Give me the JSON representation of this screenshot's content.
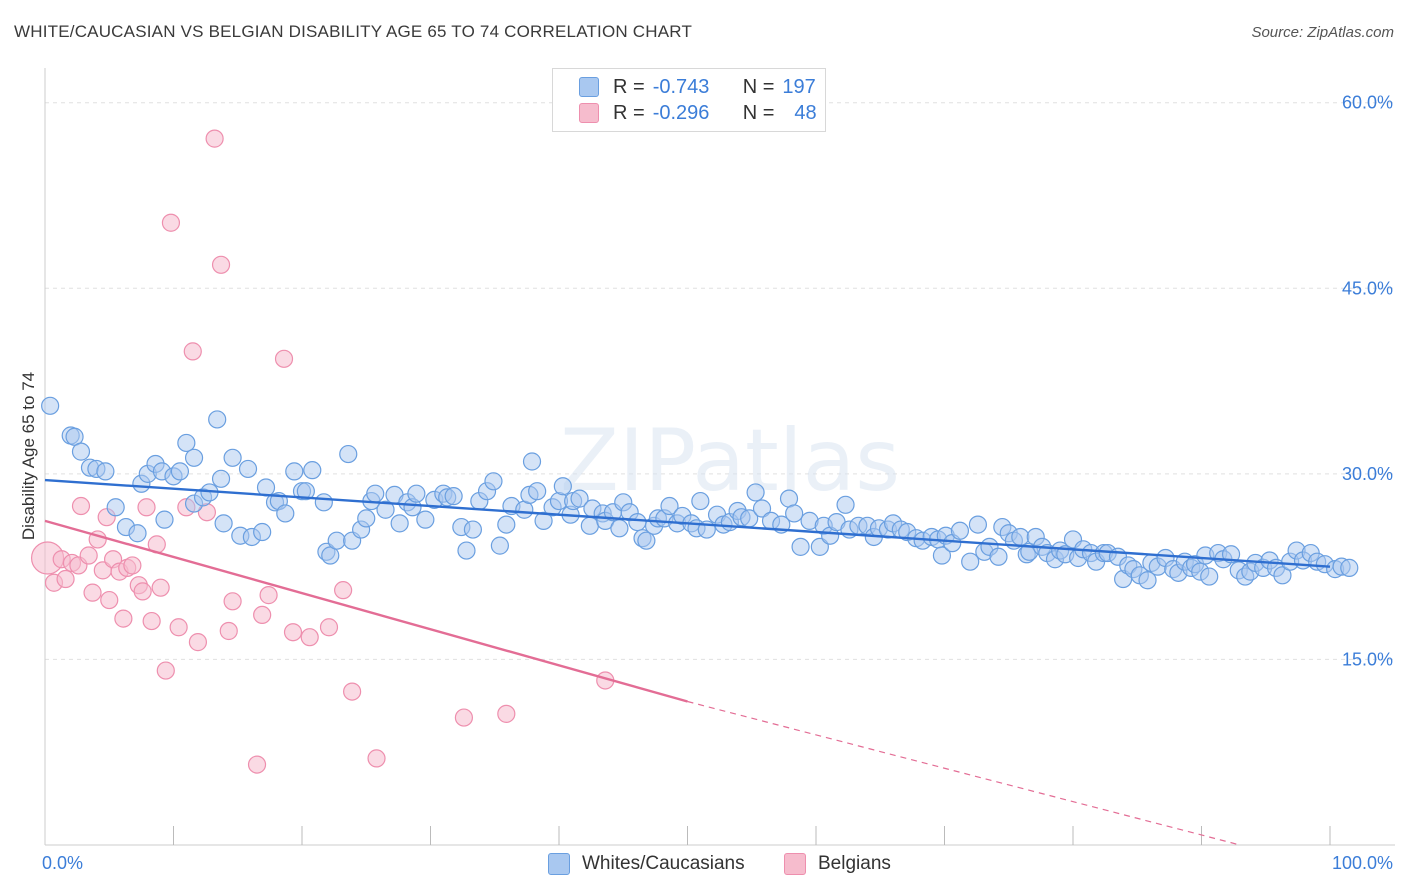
{
  "title": "WHITE/CAUCASIAN VS BELGIAN DISABILITY AGE 65 TO 74 CORRELATION CHART",
  "source": "Source: ZipAtlas.com",
  "watermark": "ZIPatlas",
  "legend": {
    "rows": [
      {
        "r_label": "R =",
        "r_value": "-0.743",
        "n_label": "N =",
        "n_value": "197"
      },
      {
        "r_label": "R =",
        "r_value": "-0.296",
        "n_label": "N =",
        "n_value": "48"
      }
    ]
  },
  "bottom_legend": [
    "Whites/Caucasians",
    "Belgians"
  ],
  "colors": {
    "blue_fill": "#a9c8f0",
    "blue_stroke": "#6a9fe0",
    "blue_line": "#2f6fd0",
    "pink_fill": "#f6bccd",
    "pink_stroke": "#ee8fae",
    "pink_line": "#e36d95",
    "tick_text": "#3b7dd8",
    "grid": "#e0e0e0"
  },
  "chart_data": {
    "type": "scatter",
    "title": "WHITE/CAUCASIAN VS BELGIAN DISABILITY AGE 65 TO 74 CORRELATION CHART",
    "xlabel": "",
    "ylabel": "Disability Age 65 to 74",
    "xlim": [
      0,
      100
    ],
    "ylim": [
      0,
      60
    ],
    "x_tick_labels": [
      "0.0%",
      "100.0%"
    ],
    "y_ticks": [
      15,
      30,
      45,
      60
    ],
    "y_tick_labels": [
      "15.0%",
      "30.0%",
      "45.0%",
      "60.0%"
    ],
    "grid": true,
    "legend_position": "top-center",
    "series": [
      {
        "name": "Whites/Caucasians",
        "r": -0.743,
        "n": 197,
        "trend": {
          "x0": 0,
          "y0": 29.5,
          "x1": 100,
          "y1": 22.5
        },
        "points": [
          [
            0.4,
            35.5
          ],
          [
            2,
            33.1
          ],
          [
            2.3,
            33
          ],
          [
            2.8,
            31.8
          ],
          [
            3.5,
            30.5
          ],
          [
            4,
            30.4
          ],
          [
            4.7,
            30.2
          ],
          [
            5.5,
            27.3
          ],
          [
            6.3,
            25.7
          ],
          [
            7.2,
            25.2
          ],
          [
            7.5,
            29.2
          ],
          [
            8,
            30
          ],
          [
            8.6,
            30.8
          ],
          [
            9.1,
            30.2
          ],
          [
            9.3,
            26.3
          ],
          [
            10,
            29.8
          ],
          [
            10.5,
            30.2
          ],
          [
            11,
            32.5
          ],
          [
            11.6,
            27.6
          ],
          [
            11.6,
            31.3
          ],
          [
            12.3,
            28.1
          ],
          [
            12.8,
            28.5
          ],
          [
            13.4,
            34.4
          ],
          [
            13.7,
            29.6
          ],
          [
            13.9,
            26
          ],
          [
            14.6,
            31.3
          ],
          [
            15.2,
            25
          ],
          [
            15.8,
            30.4
          ],
          [
            16.1,
            24.9
          ],
          [
            16.9,
            25.3
          ],
          [
            17.2,
            28.9
          ],
          [
            17.9,
            27.7
          ],
          [
            18.2,
            27.8
          ],
          [
            18.7,
            26.8
          ],
          [
            19.4,
            30.2
          ],
          [
            20,
            28.6
          ],
          [
            20.3,
            28.6
          ],
          [
            20.8,
            30.3
          ],
          [
            21.7,
            27.7
          ],
          [
            21.9,
            23.7
          ],
          [
            22.2,
            23.4
          ],
          [
            22.7,
            24.6
          ],
          [
            23.6,
            31.6
          ],
          [
            23.9,
            24.6
          ],
          [
            24.6,
            25.5
          ],
          [
            25,
            26.4
          ],
          [
            25.4,
            27.8
          ],
          [
            25.7,
            28.4
          ],
          [
            26.5,
            27.1
          ],
          [
            27.2,
            28.3
          ],
          [
            27.6,
            26
          ],
          [
            28.2,
            27.7
          ],
          [
            28.6,
            27.3
          ],
          [
            28.9,
            28.4
          ],
          [
            29.6,
            26.3
          ],
          [
            30.3,
            27.9
          ],
          [
            31,
            28.4
          ],
          [
            31.3,
            28.1
          ],
          [
            31.8,
            28.2
          ],
          [
            32.4,
            25.7
          ],
          [
            32.8,
            23.8
          ],
          [
            33.3,
            25.5
          ],
          [
            33.8,
            27.8
          ],
          [
            34.4,
            28.6
          ],
          [
            34.9,
            29.4
          ],
          [
            35.4,
            24.2
          ],
          [
            35.9,
            25.9
          ],
          [
            36.3,
            27.4
          ],
          [
            37.3,
            27.1
          ],
          [
            37.7,
            28.3
          ],
          [
            37.9,
            31
          ],
          [
            38.3,
            28.6
          ],
          [
            38.8,
            26.2
          ],
          [
            39.5,
            27.3
          ],
          [
            40,
            27.8
          ],
          [
            40.3,
            29
          ],
          [
            40.9,
            26.7
          ],
          [
            41.1,
            27.8
          ],
          [
            41.6,
            28
          ],
          [
            42.4,
            25.8
          ],
          [
            42.6,
            27.2
          ],
          [
            43.4,
            26.8
          ],
          [
            43.6,
            26.2
          ],
          [
            44.2,
            26.9
          ],
          [
            44.7,
            25.6
          ],
          [
            45,
            27.7
          ],
          [
            45.5,
            26.9
          ],
          [
            46.1,
            26.1
          ],
          [
            46.5,
            24.8
          ],
          [
            46.8,
            24.6
          ],
          [
            47.4,
            25.8
          ],
          [
            47.7,
            26.4
          ],
          [
            48.2,
            26.4
          ],
          [
            48.6,
            27.4
          ],
          [
            49.2,
            26
          ],
          [
            49.6,
            26.6
          ],
          [
            50.3,
            26
          ],
          [
            50.7,
            25.6
          ],
          [
            51,
            27.8
          ],
          [
            51.5,
            25.5
          ],
          [
            52.3,
            26.7
          ],
          [
            52.8,
            25.9
          ],
          [
            53.3,
            26.1
          ],
          [
            53.9,
            27
          ],
          [
            54.2,
            26.5
          ],
          [
            54.8,
            26.4
          ],
          [
            55.3,
            28.5
          ],
          [
            55.8,
            27.2
          ],
          [
            56.5,
            26.2
          ],
          [
            57.3,
            25.9
          ],
          [
            57.9,
            28
          ],
          [
            58.3,
            26.8
          ],
          [
            58.8,
            24.1
          ],
          [
            59.5,
            26.2
          ],
          [
            60.3,
            24.1
          ],
          [
            60.6,
            25.8
          ],
          [
            61.1,
            25
          ],
          [
            61.6,
            26.1
          ],
          [
            62.3,
            27.5
          ],
          [
            62.6,
            25.5
          ],
          [
            63.3,
            25.8
          ],
          [
            64,
            25.8
          ],
          [
            64.5,
            24.9
          ],
          [
            64.9,
            25.6
          ],
          [
            65.6,
            25.5
          ],
          [
            66,
            26
          ],
          [
            66.6,
            25.5
          ],
          [
            67.1,
            25.3
          ],
          [
            67.8,
            24.8
          ],
          [
            68.3,
            24.6
          ],
          [
            69,
            24.9
          ],
          [
            69.5,
            24.7
          ],
          [
            69.8,
            23.4
          ],
          [
            70.1,
            25
          ],
          [
            70.6,
            24.4
          ],
          [
            71.2,
            25.4
          ],
          [
            72,
            22.9
          ],
          [
            72.6,
            25.9
          ],
          [
            73.1,
            23.7
          ],
          [
            73.5,
            24.1
          ],
          [
            74.2,
            23.3
          ],
          [
            74.5,
            25.7
          ],
          [
            75,
            25.2
          ],
          [
            75.4,
            24.6
          ],
          [
            75.9,
            24.9
          ],
          [
            76.4,
            23.5
          ],
          [
            76.6,
            23.7
          ],
          [
            77.1,
            24.9
          ],
          [
            77.6,
            24.1
          ],
          [
            78,
            23.6
          ],
          [
            78.6,
            23.1
          ],
          [
            79,
            23.8
          ],
          [
            79.4,
            23.5
          ],
          [
            80,
            24.7
          ],
          [
            80.4,
            23.2
          ],
          [
            80.8,
            23.9
          ],
          [
            81.4,
            23.6
          ],
          [
            81.8,
            22.9
          ],
          [
            82.4,
            23.6
          ],
          [
            82.7,
            23.6
          ],
          [
            83.5,
            23.3
          ],
          [
            83.9,
            21.5
          ],
          [
            84.3,
            22.6
          ],
          [
            84.7,
            22.3
          ],
          [
            85.2,
            21.8
          ],
          [
            85.8,
            21.4
          ],
          [
            86.1,
            22.8
          ],
          [
            86.6,
            22.5
          ],
          [
            87.2,
            23.2
          ],
          [
            87.8,
            22.3
          ],
          [
            88.2,
            22
          ],
          [
            88.7,
            22.9
          ],
          [
            89.2,
            22.4
          ],
          [
            89.5,
            22.7
          ],
          [
            89.9,
            22.1
          ],
          [
            90.3,
            23.4
          ],
          [
            90.6,
            21.7
          ],
          [
            91.3,
            23.6
          ],
          [
            91.7,
            23.1
          ],
          [
            92.3,
            23.5
          ],
          [
            92.9,
            22.2
          ],
          [
            93.4,
            21.7
          ],
          [
            93.8,
            22.1
          ],
          [
            94.2,
            22.8
          ],
          [
            94.8,
            22.4
          ],
          [
            95.3,
            23
          ],
          [
            95.8,
            22.4
          ],
          [
            96.3,
            21.8
          ],
          [
            96.9,
            22.9
          ],
          [
            97.4,
            23.8
          ],
          [
            97.9,
            23
          ],
          [
            98.5,
            23.6
          ],
          [
            99,
            22.9
          ],
          [
            99.6,
            22.7
          ],
          [
            100.4,
            22.3
          ],
          [
            100.9,
            22.5
          ],
          [
            101.5,
            22.4
          ]
        ]
      },
      {
        "name": "Belgians",
        "r": -0.296,
        "n": 48,
        "trend": {
          "x0": 0,
          "y0": 26.2,
          "x1": 50,
          "y1": 11.6
        },
        "trend_dashed": {
          "x0": 50,
          "y0": 11.6,
          "x1": 93,
          "y1": 0
        },
        "points": [
          [
            0.2,
            23.2
          ],
          [
            0.7,
            21.2
          ],
          [
            1.3,
            23.1
          ],
          [
            1.6,
            21.5
          ],
          [
            2.1,
            22.8
          ],
          [
            2.6,
            22.6
          ],
          [
            2.8,
            27.4
          ],
          [
            3.4,
            23.4
          ],
          [
            3.7,
            20.4
          ],
          [
            4.1,
            24.7
          ],
          [
            4.5,
            22.2
          ],
          [
            4.8,
            26.5
          ],
          [
            5,
            19.8
          ],
          [
            5.3,
            23.1
          ],
          [
            5.8,
            22.1
          ],
          [
            6.1,
            18.3
          ],
          [
            6.4,
            22.4
          ],
          [
            6.8,
            22.6
          ],
          [
            7.3,
            21
          ],
          [
            7.6,
            20.5
          ],
          [
            7.9,
            27.3
          ],
          [
            8.3,
            18.1
          ],
          [
            8.7,
            24.3
          ],
          [
            9,
            20.8
          ],
          [
            9.4,
            14.1
          ],
          [
            9.8,
            50.3
          ],
          [
            10.4,
            17.6
          ],
          [
            11,
            27.3
          ],
          [
            11.5,
            39.9
          ],
          [
            11.9,
            16.4
          ],
          [
            12.6,
            26.9
          ],
          [
            13.2,
            57.1
          ],
          [
            13.7,
            46.9
          ],
          [
            14.3,
            17.3
          ],
          [
            14.6,
            19.7
          ],
          [
            16.5,
            6.5
          ],
          [
            16.9,
            18.6
          ],
          [
            17.4,
            20.2
          ],
          [
            18.6,
            39.3
          ],
          [
            19.3,
            17.2
          ],
          [
            20.6,
            16.8
          ],
          [
            22.1,
            17.6
          ],
          [
            23.2,
            20.6
          ],
          [
            23.9,
            12.4
          ],
          [
            25.8,
            7
          ],
          [
            32.6,
            10.3
          ],
          [
            35.9,
            10.6
          ],
          [
            43.6,
            13.3
          ]
        ]
      }
    ]
  }
}
